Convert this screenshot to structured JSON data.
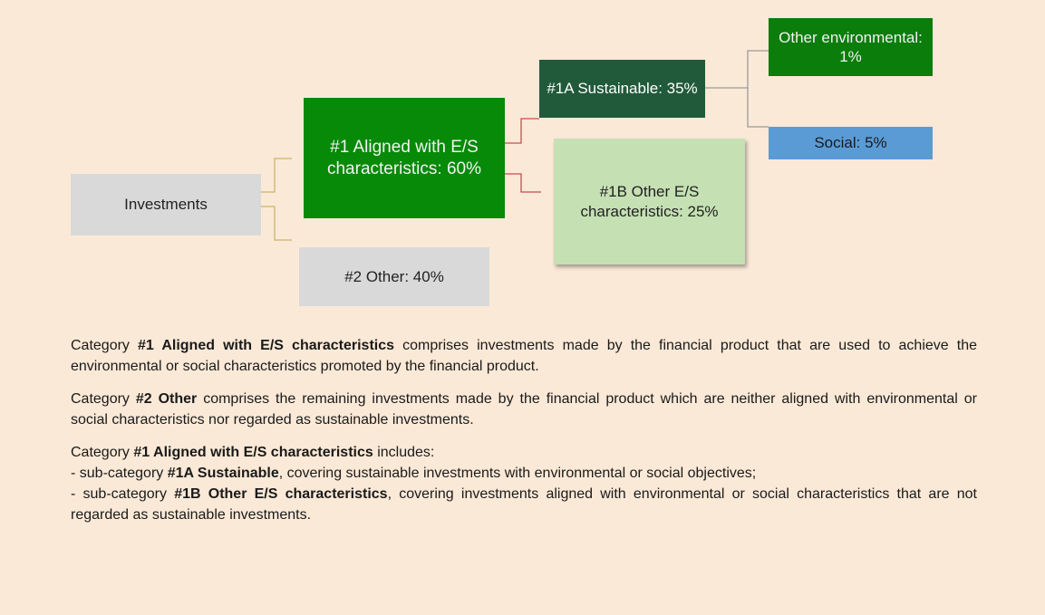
{
  "nodes": [
    {
      "label": "Investments"
    },
    {
      "label": "#1 Aligned with E/S characteristics: 60%"
    },
    {
      "label": "#2 Other: 40%"
    },
    {
      "label": "#1A Sustainable: 35%"
    },
    {
      "label": "#1B Other E/S characteristics: 25%"
    },
    {
      "label": "Other environmental: 1%"
    },
    {
      "label": "Social: 5%"
    }
  ],
  "paragraphs": [
    [
      [
        {
          "t": "Category "
        },
        {
          "b": "#1 Aligned with E/S characteristics"
        },
        {
          "t": " comprises investments made by the financial product that are used to achieve the environmental or social characteristics promoted by the financial product."
        }
      ]
    ],
    [
      [
        {
          "t": "Category "
        },
        {
          "b": "#2 Other"
        },
        {
          "t": " comprises the remaining investments made by the financial product which are neither aligned with environmental or social characteristics nor regarded as sustainable investments."
        }
      ]
    ],
    [
      [
        {
          "t": "Category "
        },
        {
          "b": "#1 Aligned with E/S characteristics"
        },
        {
          "t": " includes:"
        }
      ],
      [
        {
          "t": "- sub-category "
        },
        {
          "b": "#1A Sustainable"
        },
        {
          "t": ", covering sustainable investments with environmental or social objectives;"
        }
      ],
      [
        {
          "t": "- sub-category "
        },
        {
          "b": "#1B Other E/S characteristics"
        },
        {
          "t": ", covering investments aligned with environmental or social characteristics that are not regarded as sustainable investments."
        }
      ]
    ]
  ]
}
